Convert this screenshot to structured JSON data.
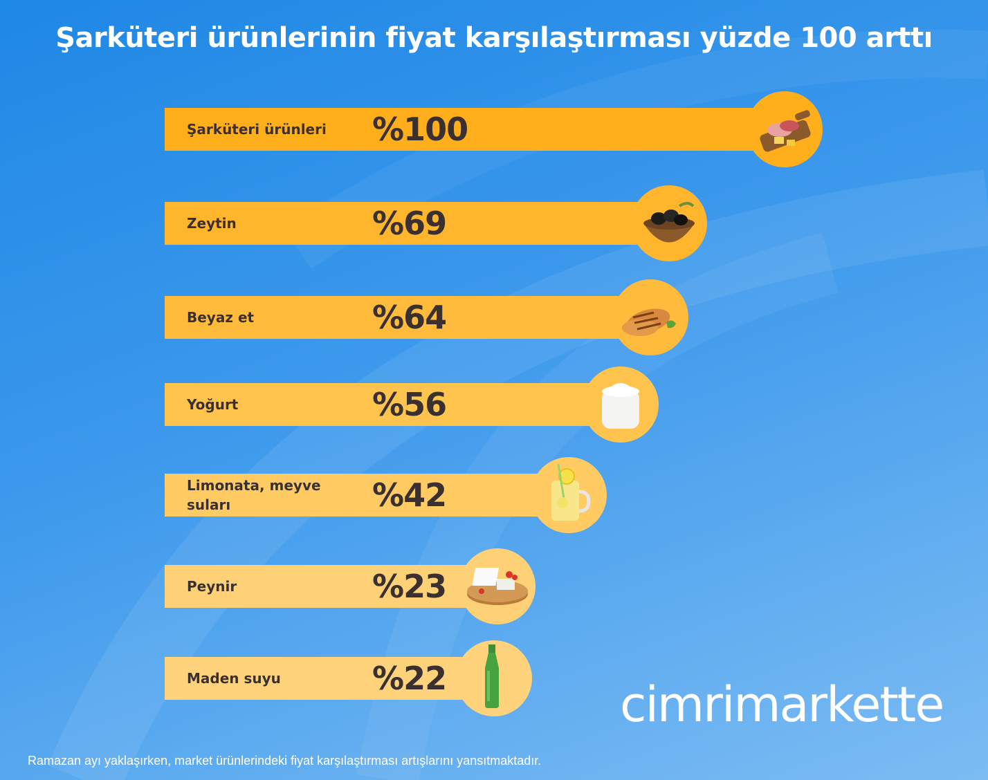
{
  "title": "Şarküteri ürünlerinin fiyat karşılaştırması yüzde 100 arttı",
  "chart_data": {
    "type": "bar",
    "orientation": "horizontal",
    "categories": [
      "Şarküteri ürünleri",
      "Zeytin",
      "Beyaz et",
      "Yoğurt",
      "Limonata, meyve suları",
      "Peynir",
      "Maden suyu"
    ],
    "values": [
      100,
      69,
      64,
      56,
      42,
      23,
      22
    ],
    "value_labels": [
      "%100",
      "%69",
      "%64",
      "%56",
      "%42",
      "%23",
      "%22"
    ],
    "icons": [
      "charcuterie-board-icon",
      "olive-bowl-icon",
      "grilled-chicken-icon",
      "yogurt-jar-icon",
      "lemonade-jar-icon",
      "cheese-board-icon",
      "mineral-water-bottle-icon"
    ],
    "bar_colors": [
      "#ffaf1c",
      "#ffb52c",
      "#ffbb3c",
      "#ffc44e",
      "#ffcb62",
      "#ffd176",
      "#ffd37c"
    ],
    "circle_colors": [
      "#ffaf1c",
      "#ffb52c",
      "#ffbb3c",
      "#ffc44e",
      "#ffcb62",
      "#ffd176",
      "#ffd37c"
    ],
    "grid": false,
    "legend": "none"
  },
  "brand": {
    "logo_text": "cimrimarkette"
  },
  "footnote": "Ramazan ayı yaklaşırken, market ürünlerindeki fiyat karşılaştırması artışlarını yansıtmaktadır."
}
